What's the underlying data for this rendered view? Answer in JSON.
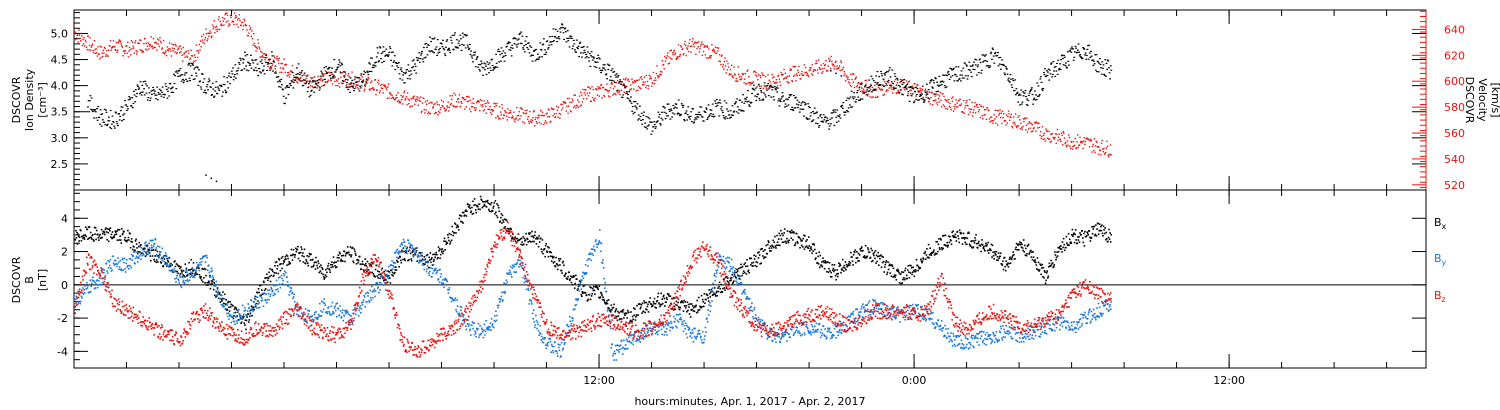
{
  "chart_data": [
    {
      "type": "scatter",
      "panel": "plasma",
      "ylabel_lines": [
        "DSCOVR",
        "Ion Density",
        "[cm⁻³]"
      ],
      "y2label_lines": [
        "DSCOVR",
        "Velocity",
        "[km/s]"
      ],
      "ylim": [
        2.0,
        5.45
      ],
      "y2lim": [
        516,
        655
      ],
      "yticks": [
        "2.5",
        "3.0",
        "3.5",
        "4.0",
        "4.5",
        "5.0"
      ],
      "y2ticks": [
        "520",
        "540",
        "560",
        "580",
        "600",
        "620",
        "640"
      ],
      "colors": {
        "density": "#000000",
        "velocity": "#e8130f"
      },
      "series": [
        {
          "axis": "left",
          "color": "#000000",
          "x": [
            -7.5,
            -7.0,
            -6.5,
            -6.0,
            -5.5,
            -5.0,
            -4.5,
            -4.0,
            -3.5,
            -3.0,
            -2.5,
            -2.0,
            -1.5,
            -1.0,
            -0.5,
            0.0,
            0.5,
            1.0,
            1.5,
            2.0,
            2.5,
            3.0,
            3.5,
            4.0,
            4.5,
            5.0,
            5.5,
            6.0,
            6.5,
            7.0,
            7.5,
            8.0,
            8.5,
            9.0,
            9.5,
            10.0,
            10.5,
            11.0,
            11.5,
            12.0,
            12.5,
            13.0,
            13.5,
            14.0,
            14.5,
            15.0,
            15.5,
            16.0,
            16.5,
            17.0,
            17.5,
            18.0,
            18.5,
            19.0,
            19.5,
            20.0,
            20.5,
            21.0,
            21.5,
            22.0,
            22.5,
            23.0,
            23.5,
            24.0,
            24.5,
            25.0,
            25.5,
            26.0,
            26.5,
            27.0,
            27.5,
            28.0,
            28.5,
            29.0,
            29.5,
            30.0,
            30.5,
            31.0,
            31.5
          ],
          "y": [
            3.7,
            3.4,
            3.35,
            3.6,
            4.0,
            3.8,
            3.9,
            4.2,
            4.3,
            4.0,
            3.9,
            4.2,
            4.5,
            4.3,
            4.5,
            3.8,
            4.3,
            3.9,
            4.2,
            4.4,
            4.0,
            4.1,
            4.6,
            4.6,
            4.2,
            4.4,
            4.8,
            4.7,
            4.9,
            4.8,
            4.3,
            4.5,
            4.7,
            4.9,
            4.6,
            4.8,
            5.1,
            4.8,
            4.6,
            4.4,
            4.2,
            3.8,
            3.5,
            3.2,
            3.5,
            3.6,
            3.4,
            3.5,
            3.6,
            3.5,
            3.7,
            3.9,
            3.9,
            3.7,
            3.7,
            3.5,
            3.3,
            3.4,
            3.7,
            3.9,
            4.1,
            4.2,
            4.0,
            3.8,
            3.9,
            4.1,
            4.2,
            4.3,
            4.4,
            4.6,
            4.3,
            3.8,
            3.8,
            4.2,
            4.4,
            4.6,
            4.7,
            4.4,
            4.3
          ]
        },
        {
          "axis": "right",
          "color": "#e8130f",
          "x": [
            -8.0,
            -7.5,
            -7.0,
            -6.5,
            -6.0,
            -5.5,
            -5.0,
            -4.5,
            -4.0,
            -3.5,
            -3.0,
            -2.5,
            -2.0,
            -1.5,
            -1.0,
            -0.5,
            0.0,
            0.5,
            1.0,
            1.5,
            2.0,
            2.5,
            3.0,
            3.5,
            4.0,
            4.5,
            5.0,
            5.5,
            6.0,
            6.5,
            7.0,
            7.5,
            8.0,
            8.5,
            9.0,
            9.5,
            10.0,
            10.5,
            11.0,
            11.5,
            12.0,
            12.5,
            13.0,
            13.5,
            14.0,
            14.5,
            15.0,
            15.5,
            16.0,
            16.5,
            17.0,
            17.5,
            18.0,
            18.5,
            19.0,
            19.5,
            20.0,
            20.5,
            21.0,
            21.5,
            22.0,
            22.5,
            23.0,
            23.5,
            24.0,
            24.5,
            25.0,
            25.5,
            26.0,
            26.5,
            27.0,
            27.5,
            28.0,
            28.5,
            29.0,
            29.5,
            30.0,
            30.5,
            31.0,
            31.5
          ],
          "y": [
            638,
            630,
            622,
            628,
            625,
            628,
            632,
            626,
            622,
            618,
            636,
            646,
            649,
            644,
            626,
            615,
            612,
            604,
            600,
            603,
            602,
            602,
            599,
            596,
            592,
            588,
            584,
            580,
            581,
            586,
            583,
            582,
            578,
            576,
            574,
            572,
            573,
            578,
            584,
            590,
            592,
            595,
            597,
            598,
            602,
            615,
            624,
            628,
            625,
            621,
            608,
            604,
            602,
            600,
            604,
            607,
            609,
            612,
            615,
            602,
            597,
            592,
            598,
            596,
            594,
            589,
            586,
            583,
            581,
            577,
            573,
            572,
            569,
            565,
            560,
            557,
            554,
            553,
            550,
            548
          ]
        },
        {
          "axis": "left",
          "color": "#000000",
          "x": [
            -3.0,
            -2.8,
            -2.6,
            20.8,
            21.0,
            21.2
          ],
          "y": [
            2.3,
            2.24,
            2.18,
            4.3,
            4.25,
            4.2
          ]
        }
      ]
    },
    {
      "type": "scatter",
      "panel": "magnetic field",
      "ylabel_lines": [
        "DSCOVR",
        "B",
        "[nT]"
      ],
      "ylim": [
        -5.0,
        5.7
      ],
      "yticks": [
        "-4",
        "-2",
        "0",
        "2",
        "4"
      ],
      "hline_at": 0,
      "legend_position": "right",
      "legend": [
        {
          "label": "B",
          "subscript": "x",
          "color": "#000000"
        },
        {
          "label": "B",
          "subscript": "y",
          "color": "#1a79d8"
        },
        {
          "label": "B",
          "subscript": "z",
          "color": "#e8130f"
        }
      ],
      "series": [
        {
          "subscript": "x",
          "color": "#000000",
          "x": [
            -8.0,
            -7.5,
            -7.0,
            -6.5,
            -6.0,
            -5.5,
            -5.0,
            -4.5,
            -4.0,
            -3.5,
            -3.0,
            -2.5,
            -2.0,
            -1.5,
            -1.0,
            -0.5,
            0.0,
            0.5,
            1.0,
            1.5,
            2.0,
            2.5,
            3.0,
            3.5,
            4.0,
            4.5,
            5.0,
            5.5,
            6.0,
            6.5,
            7.0,
            7.5,
            8.0,
            8.5,
            9.0,
            9.5,
            10.0,
            10.5,
            11.0,
            11.5,
            12.0,
            12.5,
            13.0,
            13.5,
            14.0,
            14.5,
            15.0,
            15.5,
            16.0,
            16.5,
            17.0,
            17.5,
            18.0,
            18.5,
            19.0,
            19.5,
            20.0,
            20.5,
            21.0,
            21.5,
            22.0,
            22.5,
            23.0,
            23.5,
            24.0,
            24.5,
            25.0,
            25.5,
            26.0,
            26.5,
            27.0,
            27.5,
            28.0,
            28.5,
            29.0,
            29.5,
            30.0,
            30.5,
            31.0,
            31.5
          ],
          "y": [
            2.9,
            3.1,
            3.0,
            3.1,
            2.9,
            2.2,
            1.8,
            1.5,
            0.8,
            1.2,
            0.5,
            -0.5,
            -1.5,
            -2.3,
            -0.5,
            0.8,
            1.5,
            2.0,
            1.5,
            0.8,
            1.6,
            2.0,
            1.2,
            0.8,
            0.5,
            2.0,
            1.8,
            1.5,
            2.2,
            3.5,
            4.6,
            5.0,
            4.7,
            3.5,
            2.5,
            3.0,
            2.0,
            1.2,
            0.3,
            -0.5,
            -0.4,
            -1.5,
            -2.0,
            -1.5,
            -1.0,
            -0.8,
            -1.2,
            -1.5,
            -0.8,
            -0.2,
            0.5,
            1.0,
            1.5,
            2.5,
            3.0,
            2.8,
            2.5,
            1.2,
            0.8,
            1.5,
            2.0,
            1.8,
            1.0,
            0.5,
            1.0,
            2.0,
            2.5,
            3.0,
            2.8,
            2.5,
            2.0,
            1.2,
            2.5,
            1.8,
            0.5,
            2.2,
            3.0,
            2.8,
            3.4,
            2.9
          ]
        },
        {
          "subscript": "y",
          "color": "#1a79d8",
          "x": [
            -8.0,
            -7.5,
            -7.0,
            -6.5,
            -6.0,
            -5.5,
            -5.0,
            -4.5,
            -4.0,
            -3.5,
            -3.0,
            -2.5,
            -2.0,
            -1.5,
            -1.0,
            -0.5,
            0.0,
            0.5,
            1.0,
            1.5,
            2.0,
            2.5,
            3.0,
            3.5,
            4.0,
            4.5,
            5.0,
            5.5,
            6.0,
            6.5,
            7.0,
            7.5,
            8.0,
            8.5,
            9.0,
            9.5,
            10.0,
            10.5,
            11.0,
            11.5,
            12.0,
            12.5,
            13.0,
            13.5,
            14.0,
            14.5,
            15.0,
            15.5,
            16.0,
            16.5,
            17.0,
            17.5,
            18.0,
            18.5,
            19.0,
            19.5,
            20.0,
            20.5,
            21.0,
            21.5,
            22.0,
            22.5,
            23.0,
            23.5,
            24.0,
            24.5,
            25.0,
            25.5,
            26.0,
            26.5,
            27.0,
            27.5,
            28.0,
            28.5,
            29.0,
            29.5,
            30.0,
            30.5,
            31.0,
            31.5
          ],
          "y": [
            -1.0,
            -0.2,
            0.5,
            1.5,
            1.2,
            2.0,
            2.5,
            1.5,
            0.2,
            0.8,
            1.5,
            -0.5,
            -2.0,
            -1.5,
            -1.0,
            -0.5,
            0.5,
            -1.5,
            -2.0,
            -1.2,
            -1.5,
            -2.0,
            -1.0,
            -0.2,
            1.0,
            2.5,
            2.0,
            1.0,
            0.5,
            -1.0,
            -2.5,
            -2.8,
            -2.0,
            0.5,
            1.5,
            -2.0,
            -3.5,
            -4.0,
            -1.5,
            1.2,
            3.0,
            -4.2,
            -3.5,
            -3.0,
            -2.5,
            -2.8,
            -2.0,
            -3.0,
            -3.0,
            1.5,
            1.2,
            -0.5,
            -2.0,
            -3.0,
            -3.0,
            -2.6,
            -2.5,
            -2.8,
            -2.8,
            -2.2,
            -1.5,
            -1.2,
            -1.6,
            -1.8,
            -1.5,
            -1.8,
            -2.5,
            -3.3,
            -3.5,
            -3.2,
            -3.0,
            -2.8,
            -3.0,
            -2.8,
            -2.5,
            -2.2,
            -2.5,
            -2.0,
            -1.5,
            -1.0
          ]
        },
        {
          "subscript": "z",
          "color": "#e8130f",
          "x": [
            -8.0,
            -7.5,
            -7.0,
            -6.5,
            -6.0,
            -5.5,
            -5.0,
            -4.5,
            -4.0,
            -3.5,
            -3.0,
            -2.5,
            -2.0,
            -1.5,
            -1.0,
            -0.5,
            0.0,
            0.5,
            1.0,
            1.5,
            2.0,
            2.5,
            3.0,
            3.5,
            4.0,
            4.5,
            5.0,
            5.5,
            6.0,
            6.5,
            7.0,
            7.5,
            8.0,
            8.5,
            9.0,
            9.5,
            10.0,
            10.5,
            11.0,
            11.5,
            12.0,
            12.5,
            13.0,
            13.5,
            14.0,
            14.5,
            15.0,
            15.5,
            16.0,
            16.5,
            17.0,
            17.5,
            18.0,
            18.5,
            19.0,
            19.5,
            20.0,
            20.5,
            21.0,
            21.5,
            22.0,
            22.5,
            23.0,
            23.5,
            24.0,
            24.5,
            25.0,
            25.5,
            26.0,
            26.5,
            27.0,
            27.5,
            28.0,
            28.5,
            29.0,
            29.5,
            30.0,
            30.5,
            31.0,
            31.5
          ],
          "y": [
            -1.5,
            1.5,
            0.8,
            -1.0,
            -1.5,
            -2.0,
            -2.5,
            -3.0,
            -3.3,
            -2.0,
            -1.5,
            -2.5,
            -3.0,
            -3.2,
            -2.5,
            -2.8,
            -2.0,
            -1.5,
            -2.5,
            -2.8,
            -3.0,
            -2.5,
            0.5,
            1.8,
            -0.5,
            -3.5,
            -4.0,
            -3.5,
            -3.0,
            -2.5,
            -1.5,
            0.0,
            2.5,
            3.5,
            1.5,
            -0.5,
            -2.5,
            -3.0,
            -2.8,
            -2.5,
            -2.0,
            -2.2,
            -2.6,
            -2.8,
            -2.5,
            -2.0,
            -0.5,
            1.5,
            2.3,
            1.5,
            -0.5,
            -1.5,
            -2.5,
            -2.8,
            -2.5,
            -2.0,
            -1.8,
            -1.5,
            -2.0,
            -2.5,
            -2.0,
            -1.5,
            -1.6,
            -1.5,
            -1.8,
            -1.5,
            0.5,
            -2.2,
            -2.6,
            -2.0,
            -1.5,
            -2.0,
            -2.4,
            -2.5,
            -2.0,
            -1.8,
            -0.5,
            0.0,
            -0.5,
            -0.8
          ]
        }
      ]
    }
  ],
  "xaxis": {
    "label": "hours:minutes, Apr.  1, 2017 - Apr.  2, 2017",
    "xlim": [
      -8.0,
      43.5
    ],
    "ticks": [
      {
        "x": 12,
        "label": "12:00"
      },
      {
        "x": 24,
        "label": "0:00"
      },
      {
        "x": 36,
        "label": "12:00"
      }
    ],
    "minor_tick_step": 2
  }
}
